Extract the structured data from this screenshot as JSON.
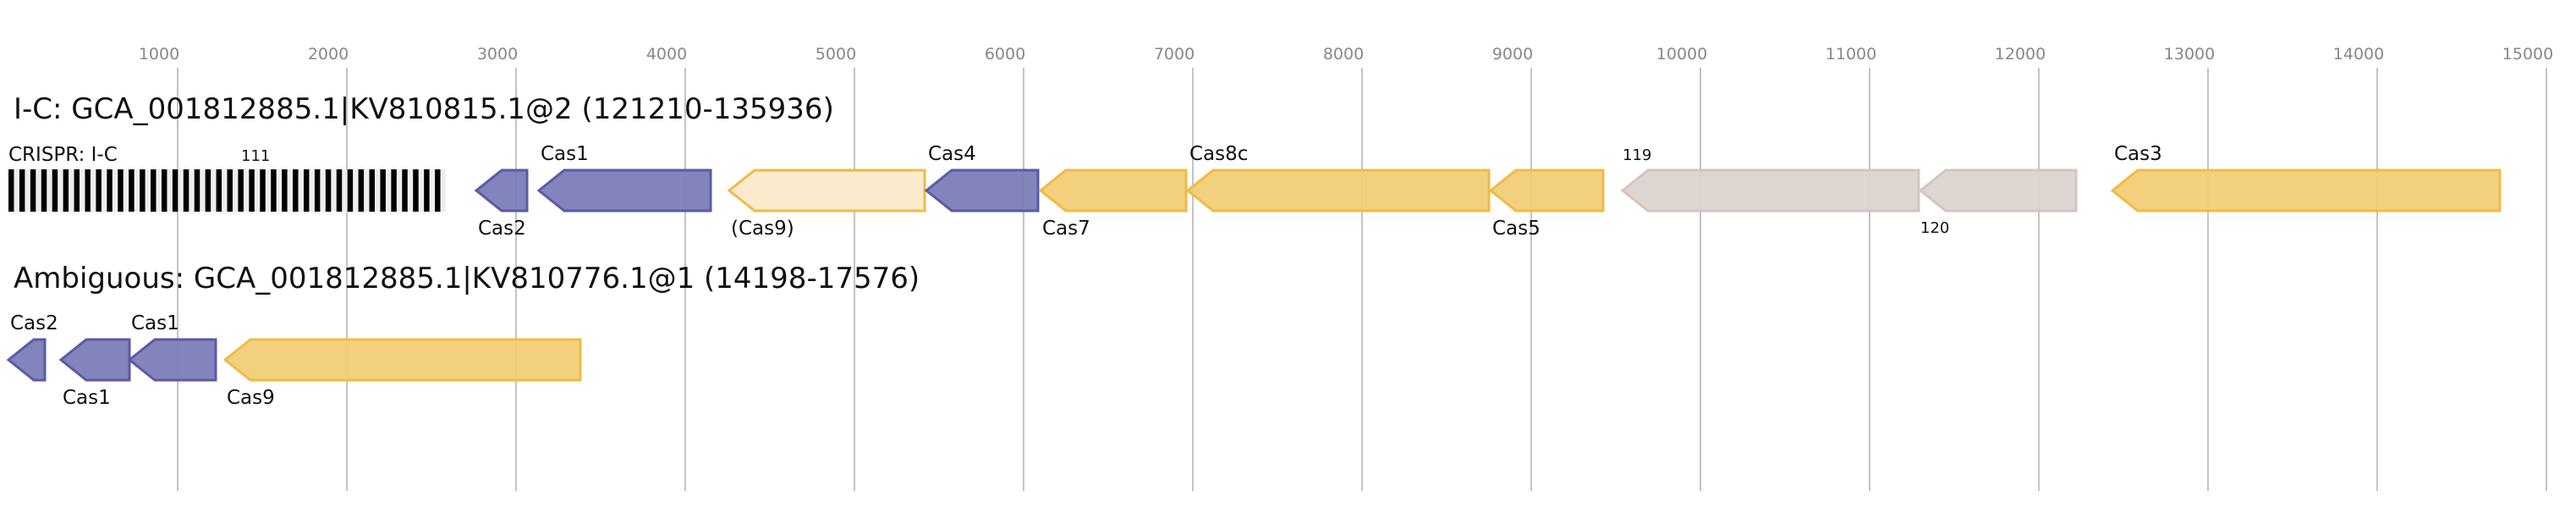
{
  "axis": {
    "ticks": [
      1000,
      2000,
      3000,
      4000,
      5000,
      6000,
      7000,
      8000,
      9000,
      10000,
      11000,
      12000,
      13000,
      14000,
      15000
    ],
    "range": [
      0,
      15000
    ],
    "grid": true
  },
  "colors": {
    "purple_fill": "#7b7db7",
    "purple_stroke": "#5a5aa8",
    "yellow_fill": "#f2cd76",
    "yellow_stroke": "#f0bb45",
    "pale_fill": "#fbeacb",
    "pale_stroke": "#f0bb45",
    "gray_fill": "#dcd4cf",
    "gray_stroke": "#d2c6be",
    "crispr_bar": "#000000",
    "crispr_bg": "#eeeeee"
  },
  "tracks": [
    {
      "title": "I-C: GCA_001812885.1|KV810815.1@2 (121210-135936)",
      "crispr": {
        "label": "CRISPR: I-C",
        "count_label": "111",
        "start": 0,
        "end": 2585
      },
      "genes": [
        {
          "name": "Cas2",
          "start": 2765,
          "end": 3065,
          "strand": "-",
          "color": "purple",
          "label_pos": "below"
        },
        {
          "name": "Cas1",
          "start": 3135,
          "end": 4150,
          "strand": "-",
          "color": "purple",
          "label_pos": "above"
        },
        {
          "name": "(Cas9)",
          "start": 4260,
          "end": 5415,
          "strand": "-",
          "color": "pale",
          "label_pos": "below"
        },
        {
          "name": "Cas4",
          "start": 5425,
          "end": 6085,
          "strand": "-",
          "color": "purple",
          "label_pos": "above"
        },
        {
          "name": "Cas7",
          "start": 6100,
          "end": 6960,
          "strand": "-",
          "color": "yellow",
          "label_pos": "below"
        },
        {
          "name": "Cas8c",
          "start": 6970,
          "end": 8750,
          "strand": "-",
          "color": "yellow",
          "label_pos": "above"
        },
        {
          "name": "Cas5",
          "start": 8760,
          "end": 9425,
          "strand": "-",
          "color": "yellow",
          "label_pos": "below"
        },
        {
          "name": "119",
          "start": 9540,
          "end": 11290,
          "strand": "-",
          "color": "gray",
          "label_pos": "above",
          "small": true
        },
        {
          "name": "120",
          "start": 11300,
          "end": 12220,
          "strand": "-",
          "color": "gray",
          "label_pos": "below",
          "small": true
        },
        {
          "name": "Cas3",
          "start": 12435,
          "end": 14725,
          "strand": "-",
          "color": "yellow",
          "label_pos": "above"
        }
      ]
    },
    {
      "title": "Ambiguous: GCA_001812885.1|KV810776.1@1 (14198-17576)",
      "genes": [
        {
          "name": "Cas2",
          "start": 0,
          "end": 215,
          "strand": "-",
          "color": "purple",
          "label_pos": "above"
        },
        {
          "name": "Cas1",
          "start": 310,
          "end": 715,
          "strand": "-",
          "color": "purple",
          "label_pos": "below"
        },
        {
          "name": "Cas1",
          "start": 715,
          "end": 1225,
          "strand": "-",
          "color": "purple",
          "label_pos": "above"
        },
        {
          "name": "Cas9",
          "start": 1280,
          "end": 3380,
          "strand": "-",
          "color": "yellow",
          "label_pos": "below"
        }
      ]
    }
  ]
}
